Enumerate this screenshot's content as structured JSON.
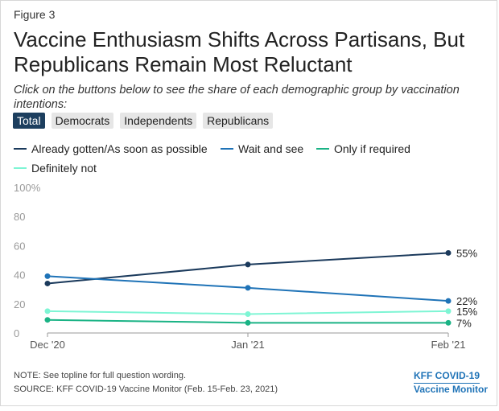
{
  "figure_label": "Figure 3",
  "title": "Vaccine Enthusiasm Shifts Across Partisans, But Republicans Remain Most Reluctant",
  "subtitle": "Click on the buttons below to see the share of each demographic group by vaccination intentions:",
  "buttons": [
    {
      "label": "Total",
      "active": true
    },
    {
      "label": "Democrats",
      "active": false
    },
    {
      "label": "Independents",
      "active": false
    },
    {
      "label": "Republicans",
      "active": false
    }
  ],
  "note": "NOTE: See topline for full question wording.",
  "source": "SOURCE: KFF COVID-19 Vaccine Monitor (Feb. 15-Feb. 23, 2021)",
  "brand": {
    "line1": "KFF COVID-19",
    "line2": "Vaccine Monitor",
    "color": "#1f73b7"
  },
  "chart_data": {
    "type": "line",
    "x": [
      "Dec '20",
      "Jan '21",
      "Feb '21"
    ],
    "ylim": [
      0,
      100
    ],
    "yticks": [
      "0",
      "20",
      "40",
      "60",
      "80",
      "100%"
    ],
    "grid": false,
    "legend_position": "top",
    "series": [
      {
        "name": "Already gotten/As soon as possible",
        "color": "#1b3a5c",
        "values": [
          34,
          47,
          55
        ],
        "end_label": "55%"
      },
      {
        "name": "Wait and see",
        "color": "#1f73b7",
        "values": [
          39,
          31,
          22
        ],
        "end_label": "22%"
      },
      {
        "name": "Only if required",
        "color": "#1ab385",
        "values": [
          9,
          7,
          7
        ],
        "end_label": "7%"
      },
      {
        "name": "Definitely not",
        "color": "#7ef5d4",
        "values": [
          15,
          13,
          15
        ],
        "end_label": "15%"
      }
    ]
  }
}
